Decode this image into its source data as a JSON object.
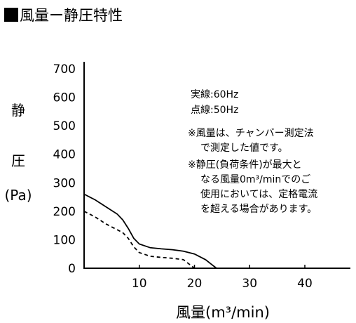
{
  "header": {
    "title": "風量ー静圧特性"
  },
  "chart_data": {
    "type": "line",
    "title": "風量ー静圧特性",
    "xlabel": "風量(m³/min)",
    "ylabel": {
      "line1": "静",
      "line2": "圧",
      "line3": "(Pa)"
    },
    "xlim": [
      0,
      48
    ],
    "ylim": [
      0,
      700
    ],
    "xticks": [
      10,
      20,
      30,
      40
    ],
    "yticks": [
      0,
      100,
      200,
      300,
      400,
      500,
      600,
      700
    ],
    "grid": false,
    "series": [
      {
        "name": "実線:60Hz",
        "style": "solid",
        "x": [
          0,
          2,
          4,
          6,
          7,
          8,
          9,
          10,
          12,
          14,
          16,
          18,
          20,
          22,
          23,
          24
        ],
        "y": [
          260,
          240,
          215,
          190,
          170,
          140,
          105,
          85,
          72,
          68,
          65,
          60,
          50,
          30,
          15,
          0
        ]
      },
      {
        "name": "点線:50Hz",
        "style": "dashed",
        "x": [
          0,
          1,
          2,
          4,
          6,
          7,
          8,
          9,
          10,
          12,
          14,
          16,
          18,
          19,
          20
        ],
        "y": [
          200,
          190,
          180,
          155,
          135,
          125,
          105,
          75,
          55,
          42,
          38,
          35,
          30,
          15,
          0
        ]
      }
    ],
    "annotations": {
      "legend_solid": "実線:60Hz",
      "legend_dashed": "点線:50Hz",
      "note1_line1": "※風量は、チャンバー測定法",
      "note1_line2": "で測定した値です。",
      "note2_line1": "※静圧(負荷条件)が最大と",
      "note2_line2": "なる風量0m³/minでのご",
      "note2_line3": "使用においては、定格電流",
      "note2_line4": "を超える場合があります。"
    }
  }
}
